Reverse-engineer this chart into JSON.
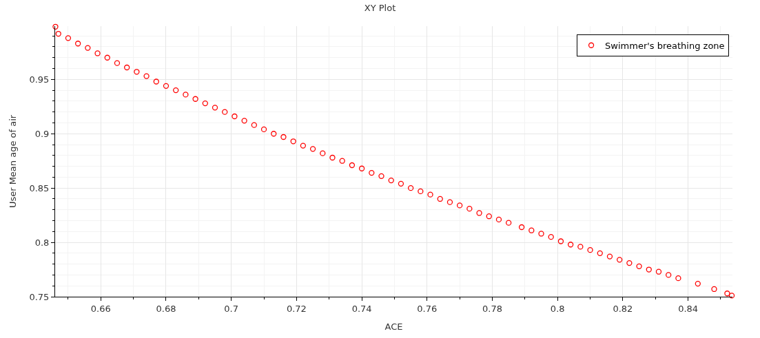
{
  "chart_data": {
    "type": "scatter",
    "title": "XY Plot",
    "xlabel": "ACE",
    "ylabel": "User Mean age of air",
    "xlim": [
      0.646,
      0.8536
    ],
    "ylim": [
      0.75,
      0.999
    ],
    "xticks": [
      0.66,
      0.68,
      0.7,
      0.72,
      0.74,
      0.76,
      0.78,
      0.8,
      0.82,
      0.84
    ],
    "yticks": [
      0.75,
      0.8,
      0.85,
      0.9,
      0.95
    ],
    "grid": true,
    "legend": "top right",
    "marker": "circle",
    "series": [
      {
        "name": "Swimmer's breathing zone",
        "color": "#ff0000",
        "x": [
          0.6461,
          0.647,
          0.65,
          0.653,
          0.656,
          0.659,
          0.662,
          0.665,
          0.668,
          0.671,
          0.674,
          0.677,
          0.68,
          0.683,
          0.686,
          0.689,
          0.692,
          0.695,
          0.698,
          0.701,
          0.704,
          0.707,
          0.71,
          0.713,
          0.716,
          0.719,
          0.722,
          0.725,
          0.728,
          0.731,
          0.734,
          0.737,
          0.74,
          0.743,
          0.746,
          0.749,
          0.752,
          0.755,
          0.758,
          0.761,
          0.764,
          0.767,
          0.77,
          0.773,
          0.776,
          0.779,
          0.782,
          0.785,
          0.789,
          0.792,
          0.795,
          0.798,
          0.801,
          0.804,
          0.807,
          0.81,
          0.813,
          0.816,
          0.819,
          0.822,
          0.825,
          0.828,
          0.831,
          0.834,
          0.837,
          0.843,
          0.848,
          0.852,
          0.8534
        ],
        "values": [
          0.9985,
          0.992,
          0.988,
          0.983,
          0.979,
          0.974,
          0.97,
          0.965,
          0.961,
          0.957,
          0.953,
          0.948,
          0.944,
          0.94,
          0.936,
          0.932,
          0.928,
          0.924,
          0.92,
          0.916,
          0.912,
          0.908,
          0.904,
          0.9,
          0.897,
          0.893,
          0.889,
          0.886,
          0.882,
          0.878,
          0.875,
          0.871,
          0.868,
          0.864,
          0.861,
          0.857,
          0.854,
          0.85,
          0.847,
          0.844,
          0.84,
          0.837,
          0.834,
          0.831,
          0.827,
          0.824,
          0.821,
          0.818,
          0.814,
          0.811,
          0.808,
          0.805,
          0.801,
          0.798,
          0.796,
          0.793,
          0.79,
          0.787,
          0.784,
          0.781,
          0.778,
          0.775,
          0.773,
          0.77,
          0.767,
          0.762,
          0.757,
          0.753,
          0.751
        ]
      }
    ]
  }
}
